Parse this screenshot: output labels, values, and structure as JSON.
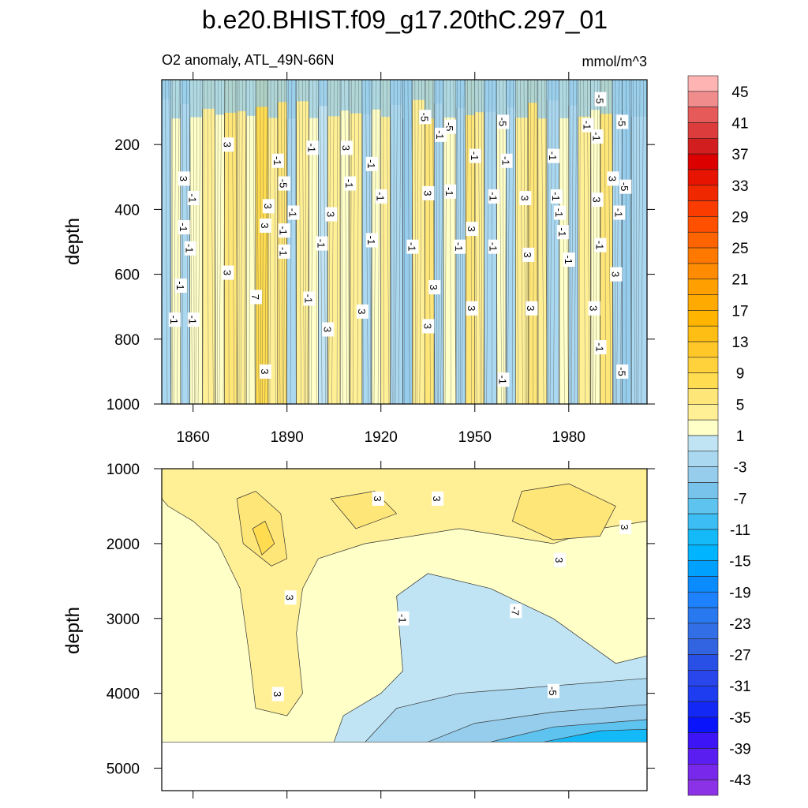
{
  "chart_data": [
    {
      "type": "heatmap",
      "panel": "upper",
      "title": "b.e20.BHIST.f09_g17.20thC.297_01",
      "subtitle_left": "O2 anomaly, ATL_49N-66N",
      "subtitle_right": "mmol/m^3",
      "xlabel": "",
      "ylabel": "depth",
      "xlim": [
        1850,
        2005
      ],
      "ylim": [
        0,
        1000
      ],
      "y_inverted": true,
      "xticks": [
        1860,
        1890,
        1920,
        1950,
        1980
      ],
      "xtick_labels": [
        "1860",
        "1890",
        "1920",
        "1950",
        "1980"
      ],
      "yticks": [
        200,
        400,
        600,
        800,
        1000
      ],
      "ytick_labels": [
        "200",
        "400",
        "600",
        "800",
        "1000"
      ],
      "bands": [
        {
          "x0": 1850,
          "x1": 1853,
          "level": -3
        },
        {
          "x0": 1853,
          "x1": 1856,
          "level": 1
        },
        {
          "x0": 1856,
          "x1": 1859,
          "level": -3
        },
        {
          "x0": 1859,
          "x1": 1863,
          "level": 1
        },
        {
          "x0": 1863,
          "x1": 1867,
          "level": 3
        },
        {
          "x0": 1867,
          "x1": 1870,
          "level": 1
        },
        {
          "x0": 1870,
          "x1": 1874,
          "level": 5
        },
        {
          "x0": 1874,
          "x1": 1877,
          "level": 3
        },
        {
          "x0": 1877,
          "x1": 1880,
          "level": 1
        },
        {
          "x0": 1880,
          "x1": 1884,
          "level": 7
        },
        {
          "x0": 1884,
          "x1": 1887,
          "level": 3
        },
        {
          "x0": 1887,
          "x1": 1890,
          "level": 5
        },
        {
          "x0": 1890,
          "x1": 1893,
          "level": -3
        },
        {
          "x0": 1893,
          "x1": 1897,
          "level": 3
        },
        {
          "x0": 1897,
          "x1": 1900,
          "level": 1
        },
        {
          "x0": 1900,
          "x1": 1903,
          "level": -1
        },
        {
          "x0": 1903,
          "x1": 1907,
          "level": 3
        },
        {
          "x0": 1907,
          "x1": 1910,
          "level": 1
        },
        {
          "x0": 1910,
          "x1": 1914,
          "level": 3
        },
        {
          "x0": 1914,
          "x1": 1917,
          "level": -3
        },
        {
          "x0": 1917,
          "x1": 1920,
          "level": 1
        },
        {
          "x0": 1920,
          "x1": 1923,
          "level": 3
        },
        {
          "x0": 1923,
          "x1": 1927,
          "level": -3
        },
        {
          "x0": 1927,
          "x1": 1930,
          "level": -5
        },
        {
          "x0": 1930,
          "x1": 1934,
          "level": 3
        },
        {
          "x0": 1934,
          "x1": 1937,
          "level": 5
        },
        {
          "x0": 1937,
          "x1": 1940,
          "level": -3
        },
        {
          "x0": 1940,
          "x1": 1944,
          "level": 1
        },
        {
          "x0": 1944,
          "x1": 1947,
          "level": -3
        },
        {
          "x0": 1947,
          "x1": 1950,
          "level": 5
        },
        {
          "x0": 1950,
          "x1": 1953,
          "level": 3
        },
        {
          "x0": 1953,
          "x1": 1957,
          "level": -3
        },
        {
          "x0": 1957,
          "x1": 1960,
          "level": 1
        },
        {
          "x0": 1960,
          "x1": 1963,
          "level": -3
        },
        {
          "x0": 1963,
          "x1": 1967,
          "level": 3
        },
        {
          "x0": 1967,
          "x1": 1970,
          "level": 5
        },
        {
          "x0": 1970,
          "x1": 1973,
          "level": 3
        },
        {
          "x0": 1973,
          "x1": 1977,
          "level": -3
        },
        {
          "x0": 1977,
          "x1": 1980,
          "level": 1
        },
        {
          "x0": 1980,
          "x1": 1983,
          "level": -3
        },
        {
          "x0": 1983,
          "x1": 1987,
          "level": 3
        },
        {
          "x0": 1987,
          "x1": 1990,
          "level": 1
        },
        {
          "x0": 1990,
          "x1": 1994,
          "level": 5
        },
        {
          "x0": 1994,
          "x1": 1997,
          "level": -3
        },
        {
          "x0": 1997,
          "x1": 2000,
          "level": -5
        },
        {
          "x0": 2000,
          "x1": 2005,
          "level": -3
        }
      ],
      "near_surface_level": -5,
      "near_surface_depth": 120,
      "contour_labels": [
        {
          "text": "-5",
          "x": 1934,
          "y": 115
        },
        {
          "text": "-5",
          "x": 1942,
          "y": 145
        },
        {
          "text": "-5",
          "x": 1959,
          "y": 130
        },
        {
          "text": "-5",
          "x": 1990,
          "y": 60
        },
        {
          "text": "-5",
          "x": 1997,
          "y": 130
        },
        {
          "text": "-5",
          "x": 1998,
          "y": 330
        },
        {
          "text": "-5",
          "x": 1889,
          "y": 320
        },
        {
          "text": "-5",
          "x": 1997,
          "y": 900
        },
        {
          "text": "3",
          "x": 1871,
          "y": 200
        },
        {
          "text": "3",
          "x": 1857,
          "y": 305
        },
        {
          "text": "3",
          "x": 1883,
          "y": 450
        },
        {
          "text": "3",
          "x": 1883,
          "y": 900
        },
        {
          "text": "3",
          "x": 1871,
          "y": 595
        },
        {
          "text": "3",
          "x": 1884,
          "y": 390
        },
        {
          "text": "3",
          "x": 1904,
          "y": 415
        },
        {
          "text": "3",
          "x": 1903,
          "y": 770
        },
        {
          "text": "3",
          "x": 1909,
          "y": 210
        },
        {
          "text": "3",
          "x": 1914,
          "y": 715
        },
        {
          "text": "3",
          "x": 1935,
          "y": 350
        },
        {
          "text": "3",
          "x": 1937,
          "y": 640
        },
        {
          "text": "3",
          "x": 1935,
          "y": 760
        },
        {
          "text": "3",
          "x": 1949,
          "y": 460
        },
        {
          "text": "3",
          "x": 1949,
          "y": 705
        },
        {
          "text": "3",
          "x": 1966,
          "y": 365
        },
        {
          "text": "3",
          "x": 1967,
          "y": 540
        },
        {
          "text": "3",
          "x": 1968,
          "y": 705
        },
        {
          "text": "3",
          "x": 1988,
          "y": 705
        },
        {
          "text": "3",
          "x": 1989,
          "y": 370
        },
        {
          "text": "3",
          "x": 1994,
          "y": 305
        },
        {
          "text": "3",
          "x": 1995,
          "y": 600
        },
        {
          "text": "7",
          "x": 1880,
          "y": 670
        },
        {
          "text": "-1",
          "x": 1857,
          "y": 455
        },
        {
          "text": "-1",
          "x": 1859,
          "y": 520
        },
        {
          "text": "-1",
          "x": 1856,
          "y": 635
        },
        {
          "text": "-1",
          "x": 1854,
          "y": 740
        },
        {
          "text": "-1",
          "x": 1860,
          "y": 740
        },
        {
          "text": "-1",
          "x": 1860,
          "y": 365
        },
        {
          "text": "-1",
          "x": 1887,
          "y": 250
        },
        {
          "text": "-1",
          "x": 1898,
          "y": 210
        },
        {
          "text": "-1",
          "x": 1889,
          "y": 465
        },
        {
          "text": "-1",
          "x": 1889,
          "y": 530
        },
        {
          "text": "-1",
          "x": 1892,
          "y": 410
        },
        {
          "text": "-1",
          "x": 1897,
          "y": 675
        },
        {
          "text": "-1",
          "x": 1901,
          "y": 505
        },
        {
          "text": "-1",
          "x": 1910,
          "y": 320
        },
        {
          "text": "-1",
          "x": 1917,
          "y": 495
        },
        {
          "text": "-1",
          "x": 1917,
          "y": 260
        },
        {
          "text": "-1",
          "x": 1920,
          "y": 360
        },
        {
          "text": "-1",
          "x": 1930,
          "y": 515
        },
        {
          "text": "-1",
          "x": 1939,
          "y": 170
        },
        {
          "text": "-1",
          "x": 1942,
          "y": 345
        },
        {
          "text": "-1",
          "x": 1945,
          "y": 515
        },
        {
          "text": "-1",
          "x": 1950,
          "y": 235
        },
        {
          "text": "-1",
          "x": 1956,
          "y": 360
        },
        {
          "text": "-1",
          "x": 1956,
          "y": 515
        },
        {
          "text": "-1",
          "x": 1960,
          "y": 250
        },
        {
          "text": "-1",
          "x": 1959,
          "y": 925
        },
        {
          "text": "-1",
          "x": 1975,
          "y": 235
        },
        {
          "text": "-1",
          "x": 1976,
          "y": 360
        },
        {
          "text": "-1",
          "x": 1977,
          "y": 410
        },
        {
          "text": "-1",
          "x": 1978,
          "y": 470
        },
        {
          "text": "-1",
          "x": 1980,
          "y": 555
        },
        {
          "text": "-1",
          "x": 1986,
          "y": 140
        },
        {
          "text": "-1",
          "x": 1990,
          "y": 510
        },
        {
          "text": "-1",
          "x": 1990,
          "y": 825
        },
        {
          "text": "-1",
          "x": 1996,
          "y": 410
        },
        {
          "text": "-1",
          "x": 1989,
          "y": 175
        }
      ]
    },
    {
      "type": "heatmap",
      "panel": "lower",
      "xlabel": "",
      "ylabel": "depth",
      "xlim": [
        1850,
        2005
      ],
      "ylim": [
        1000,
        5300
      ],
      "y_inverted": true,
      "data_max_depth": 4650,
      "yticks": [
        1000,
        2000,
        3000,
        4000,
        5000
      ],
      "ytick_labels": [
        "1000",
        "2000",
        "3000",
        "4000",
        "5000"
      ],
      "contour_labels": [
        {
          "text": "3",
          "x": 1919,
          "y": 1400
        },
        {
          "text": "3",
          "x": 1938,
          "y": 1400
        },
        {
          "text": "3",
          "x": 1998,
          "y": 1780
        },
        {
          "text": "3",
          "x": 1977,
          "y": 2220
        },
        {
          "text": "3",
          "x": 1891,
          "y": 2720
        },
        {
          "text": "3",
          "x": 1887,
          "y": 4010
        },
        {
          "text": "-1",
          "x": 1927,
          "y": 3000
        },
        {
          "text": "-7",
          "x": 1963,
          "y": 2900
        },
        {
          "text": "-5",
          "x": 1975,
          "y": 3970
        }
      ]
    }
  ],
  "colorbar": {
    "levels": [
      45,
      43,
      41,
      39,
      37,
      35,
      33,
      31,
      29,
      27,
      25,
      23,
      21,
      19,
      17,
      15,
      13,
      11,
      9,
      7,
      5,
      3,
      1,
      -1,
      -3,
      -5,
      -7,
      -9,
      -11,
      -13,
      -15,
      -17,
      -19,
      -21,
      -23,
      -25,
      -27,
      -29,
      -31,
      -33,
      -35,
      -37,
      -39,
      -41,
      -43,
      -45
    ],
    "colors": [
      "#ffb4b4",
      "#f08c8c",
      "#e65a5a",
      "#dc3c3c",
      "#d21e1e",
      "#dc0000",
      "#e61400",
      "#f02800",
      "#fa3c00",
      "#ff5000",
      "#ff6400",
      "#ff7800",
      "#ff8c00",
      "#ffa000",
      "#ffaa00",
      "#ffb400",
      "#ffbe14",
      "#ffc828",
      "#ffd23c",
      "#ffdc50",
      "#ffe678",
      "#fff096",
      "#ffffc8",
      "#c0e4f4",
      "#aad8f0",
      "#96cdec",
      "#78c3eb",
      "#5fc3f0",
      "#3cbef5",
      "#14b9f8",
      "#00b4ff",
      "#00a0ff",
      "#0a8cff",
      "#1e82ff",
      "#2878f0",
      "#326ee6",
      "#3264e1",
      "#2850e6",
      "#2846ec",
      "#1e3cf0",
      "#1428f5",
      "#0a14fa",
      "#3c14f5",
      "#5a1ef0",
      "#7828eb",
      "#8c32e6"
    ],
    "tick_labels": [
      "45",
      "41",
      "37",
      "33",
      "29",
      "25",
      "21",
      "17",
      "13",
      "9",
      "5",
      "1",
      "-3",
      "-7",
      "-11",
      "-15",
      "-19",
      "-23",
      "-27",
      "-31",
      "-35",
      "-39",
      "-43"
    ]
  }
}
